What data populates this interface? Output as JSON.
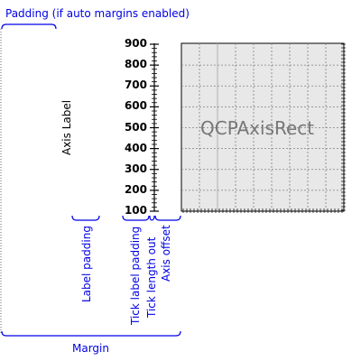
{
  "annotations": {
    "padding_label": "Padding (if auto margins enabled)",
    "margin_label": "Margin",
    "label_padding": "Label padding",
    "tick_label_padding": "Tick label padding",
    "tick_length_out": "Tick length out",
    "axis_offset": "Axis offset"
  },
  "axis": {
    "label": "Axis Label",
    "ticks": [
      "900",
      "800",
      "700",
      "600",
      "500",
      "400",
      "300",
      "200",
      "100"
    ],
    "range": [
      100,
      900
    ]
  },
  "axis_rect": {
    "caption": "QCPAxisRect",
    "fill": "#e8e8e8",
    "grid_color": "#808080"
  },
  "colors": {
    "annotation": "#0000e6"
  }
}
